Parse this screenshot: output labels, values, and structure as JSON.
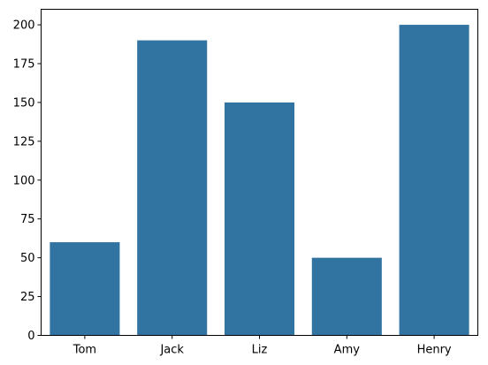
{
  "chart_data": {
    "type": "bar",
    "categories": [
      "Tom",
      "Jack",
      "Liz",
      "Amy",
      "Henry"
    ],
    "values": [
      60,
      190,
      150,
      50,
      200
    ],
    "title": "",
    "xlabel": "",
    "ylabel": "",
    "ylim": [
      0,
      210
    ],
    "yticks": [
      0,
      25,
      50,
      75,
      100,
      125,
      150,
      175,
      200
    ],
    "grid": false,
    "legend": false,
    "bar_color": "#3274a1"
  }
}
